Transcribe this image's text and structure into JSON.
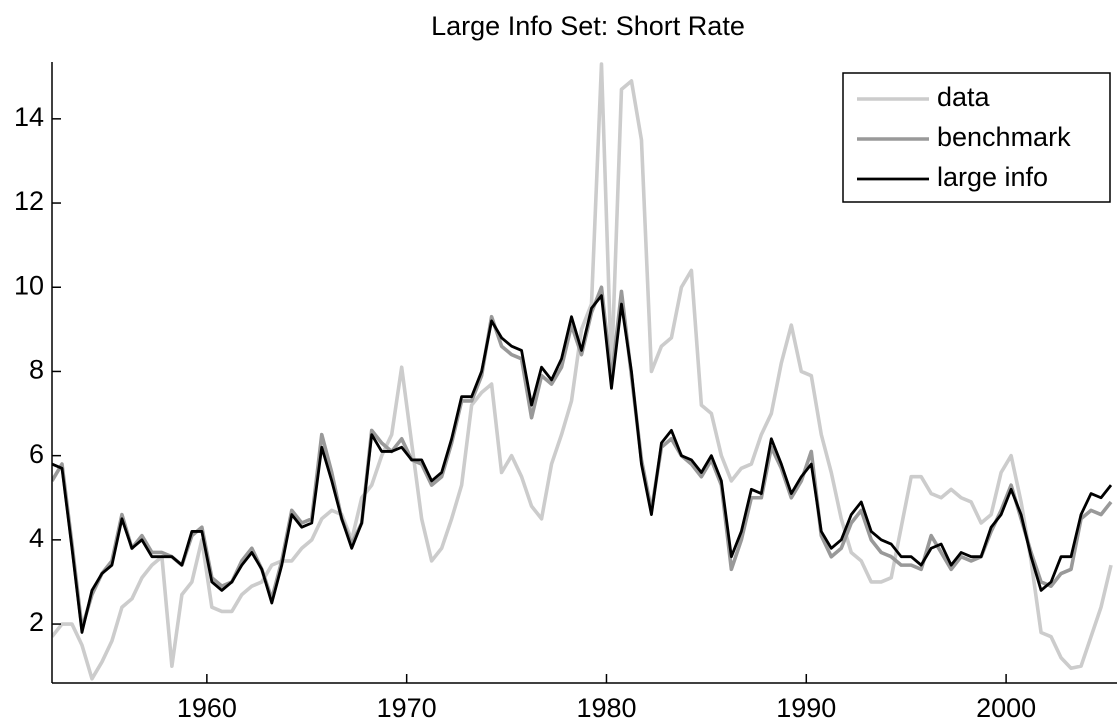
{
  "chart_data": {
    "type": "line",
    "title": "Large Info Set: Short Rate",
    "x": [
      1952.25,
      1952.75,
      1953.25,
      1953.75,
      1954.25,
      1954.75,
      1955.25,
      1955.75,
      1956.25,
      1956.75,
      1957.25,
      1957.75,
      1958.25,
      1958.75,
      1959.25,
      1959.75,
      1960.25,
      1960.75,
      1961.25,
      1961.75,
      1962.25,
      1962.75,
      1963.25,
      1963.75,
      1964.25,
      1964.75,
      1965.25,
      1965.75,
      1966.25,
      1966.75,
      1967.25,
      1967.75,
      1968.25,
      1968.75,
      1969.25,
      1969.75,
      1970.25,
      1970.75,
      1971.25,
      1971.75,
      1972.25,
      1972.75,
      1973.25,
      1973.75,
      1974.25,
      1974.75,
      1975.25,
      1975.75,
      1976.25,
      1976.75,
      1977.25,
      1977.75,
      1978.25,
      1978.75,
      1979.25,
      1979.75,
      1980.25,
      1980.75,
      1981.25,
      1981.75,
      1982.25,
      1982.75,
      1983.25,
      1983.75,
      1984.25,
      1984.75,
      1985.25,
      1985.75,
      1986.25,
      1986.75,
      1987.25,
      1987.75,
      1988.25,
      1988.75,
      1989.25,
      1989.75,
      1990.25,
      1990.75,
      1991.25,
      1991.75,
      1992.25,
      1992.75,
      1993.25,
      1993.75,
      1994.25,
      1994.75,
      1995.25,
      1995.75,
      1996.25,
      1996.75,
      1997.25,
      1997.75,
      1998.25,
      1998.75,
      1999.25,
      1999.75,
      2000.25,
      2000.75,
      2001.25,
      2001.75,
      2002.25,
      2002.75,
      2003.25,
      2003.75,
      2004.25,
      2004.75,
      2005.25
    ],
    "series": [
      {
        "name": "data",
        "color": "#cccccc",
        "values": [
          1.7,
          2.0,
          2.0,
          1.5,
          0.7,
          1.1,
          1.6,
          2.4,
          2.6,
          3.1,
          3.4,
          3.6,
          1.0,
          2.7,
          3.0,
          4.0,
          2.4,
          2.3,
          2.3,
          2.7,
          2.9,
          3.0,
          3.4,
          3.5,
          3.5,
          3.8,
          4.0,
          4.5,
          4.7,
          4.6,
          4.0,
          5.0,
          5.3,
          6.0,
          6.5,
          8.1,
          6.3,
          4.5,
          3.5,
          3.8,
          4.5,
          5.3,
          7.2,
          7.5,
          7.7,
          5.6,
          6.0,
          5.5,
          4.8,
          4.5,
          5.8,
          6.5,
          7.3,
          9.0,
          9.6,
          15.3,
          8.0,
          14.7,
          14.9,
          13.5,
          8.0,
          8.6,
          8.8,
          10.0,
          10.4,
          7.2,
          7.0,
          6.0,
          5.4,
          5.7,
          5.8,
          6.5,
          7.0,
          8.2,
          9.1,
          8.0,
          7.9,
          6.5,
          5.6,
          4.5,
          3.7,
          3.5,
          3.0,
          3.0,
          3.1,
          4.3,
          5.5,
          5.5,
          5.1,
          5.0,
          5.2,
          5.0,
          4.9,
          4.4,
          4.6,
          5.6,
          6.0,
          4.9,
          3.5,
          1.8,
          1.7,
          1.2,
          0.95,
          1.0,
          1.7,
          2.4,
          3.4
        ]
      },
      {
        "name": "benchmark",
        "color": "#999999",
        "values": [
          5.4,
          5.8,
          3.9,
          1.9,
          2.7,
          3.2,
          3.5,
          4.6,
          3.8,
          4.1,
          3.7,
          3.7,
          3.6,
          3.4,
          4.1,
          4.3,
          3.1,
          2.9,
          3.0,
          3.5,
          3.8,
          3.3,
          2.6,
          3.5,
          4.7,
          4.4,
          4.5,
          6.5,
          5.6,
          4.5,
          3.9,
          4.4,
          6.6,
          6.3,
          6.1,
          6.4,
          5.9,
          5.8,
          5.3,
          5.5,
          6.3,
          7.3,
          7.3,
          7.9,
          9.3,
          8.6,
          8.4,
          8.3,
          6.9,
          7.9,
          7.7,
          8.1,
          9.1,
          8.4,
          9.4,
          10.0,
          7.8,
          9.9,
          7.9,
          5.9,
          4.7,
          6.2,
          6.4,
          6.0,
          5.8,
          5.5,
          5.9,
          5.3,
          3.3,
          4.0,
          5.0,
          5.0,
          6.2,
          5.7,
          5.0,
          5.4,
          6.1,
          4.1,
          3.6,
          3.8,
          4.4,
          4.7,
          4.0,
          3.7,
          3.6,
          3.4,
          3.4,
          3.3,
          4.1,
          3.7,
          3.3,
          3.6,
          3.5,
          3.6,
          4.2,
          4.7,
          5.3,
          4.5,
          3.7,
          3.0,
          2.9,
          3.2,
          3.3,
          4.5,
          4.7,
          4.6,
          4.9
        ]
      },
      {
        "name": "large info",
        "color": "#000000",
        "values": [
          5.8,
          5.7,
          3.8,
          1.8,
          2.8,
          3.2,
          3.4,
          4.5,
          3.8,
          4.0,
          3.6,
          3.6,
          3.6,
          3.4,
          4.2,
          4.2,
          3.0,
          2.8,
          3.0,
          3.4,
          3.7,
          3.3,
          2.5,
          3.4,
          4.6,
          4.3,
          4.4,
          6.2,
          5.4,
          4.5,
          3.8,
          4.4,
          6.5,
          6.1,
          6.1,
          6.2,
          5.9,
          5.9,
          5.4,
          5.6,
          6.4,
          7.4,
          7.4,
          8.0,
          9.2,
          8.8,
          8.6,
          8.5,
          7.2,
          8.1,
          7.8,
          8.3,
          9.3,
          8.5,
          9.5,
          9.8,
          7.6,
          9.6,
          8.0,
          5.8,
          4.6,
          6.3,
          6.6,
          6.0,
          5.9,
          5.6,
          6.0,
          5.4,
          3.6,
          4.2,
          5.2,
          5.1,
          6.4,
          5.8,
          5.1,
          5.5,
          5.8,
          4.2,
          3.8,
          4.0,
          4.6,
          4.9,
          4.2,
          4.0,
          3.9,
          3.6,
          3.6,
          3.4,
          3.8,
          3.9,
          3.4,
          3.7,
          3.6,
          3.6,
          4.3,
          4.6,
          5.2,
          4.6,
          3.6,
          2.8,
          3.0,
          3.6,
          3.6,
          4.6,
          5.1,
          5.0,
          5.3
        ]
      }
    ],
    "xlim": [
      1952.25,
      2005.55
    ],
    "ylim": [
      0.6,
      15.35
    ],
    "xticks": [
      1960,
      1970,
      1980,
      1990,
      2000
    ],
    "yticks": [
      2,
      4,
      6,
      8,
      10,
      12,
      14
    ],
    "grid": false,
    "legend": "upper right"
  }
}
